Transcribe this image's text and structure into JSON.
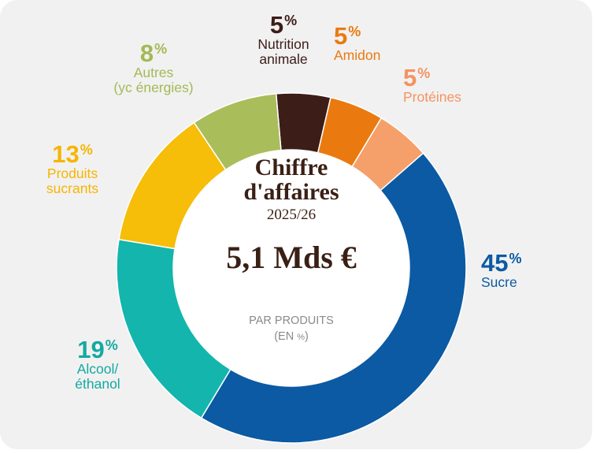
{
  "center": {
    "title_line1": "Chiffre",
    "title_line2": "d'affaires",
    "year": "2025/26",
    "total": "5,1 Mds €",
    "subtitle_line1": "PAR PRODUITS",
    "subtitle_line2a": "(EN ",
    "subtitle_line2b": "%",
    "subtitle_line2c": ")"
  },
  "chart_data": {
    "type": "pie",
    "variant": "donut",
    "unit": "%",
    "categories": [
      "Sucre",
      "Alcool/ éthanol",
      "Produits sucrants",
      "Autres (yc énergies)",
      "Nutrition animale",
      "Amidon",
      "Protéines"
    ],
    "values": [
      45,
      19,
      13,
      8,
      5,
      5,
      5
    ],
    "colors": [
      "#0b5aa3",
      "#14b5ad",
      "#f6bd09",
      "#a9bd5b",
      "#3d1d18",
      "#ea7a10",
      "#f5a06a"
    ],
    "label_colors": [
      "#0b5aa3",
      "#14a9a1",
      "#f6b500",
      "#a3b955",
      "#3d1d18",
      "#ea7a10",
      "#f49360"
    ],
    "labels": [
      {
        "pct": "45",
        "sign": "%",
        "lines": [
          "Sucre"
        ]
      },
      {
        "pct": "19",
        "sign": "%",
        "lines": [
          "Alcool/",
          "éthanol"
        ]
      },
      {
        "pct": "13",
        "sign": "%",
        "lines": [
          "Produits",
          "sucrants"
        ]
      },
      {
        "pct": "8",
        "sign": "%",
        "lines": [
          "Autres",
          "(yc énergies)"
        ]
      },
      {
        "pct": "5",
        "sign": "%",
        "lines": [
          "Nutrition",
          "animale"
        ]
      },
      {
        "pct": "5",
        "sign": "%",
        "lines": [
          "Amidon"
        ]
      },
      {
        "pct": "5",
        "sign": "%",
        "lines": [
          "Protéines"
        ]
      }
    ]
  }
}
